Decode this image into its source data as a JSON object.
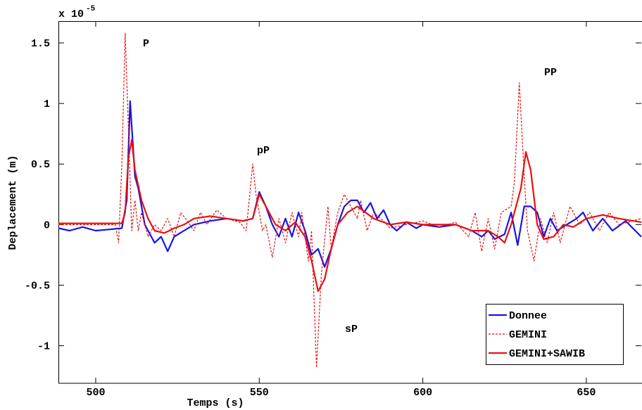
{
  "chart_data": {
    "type": "line",
    "xlabel": "Temps (s)",
    "ylabel": "Deplacement (m)",
    "y_multiplier": "x 10",
    "y_multiplier_exp": "-5",
    "annotations": [
      "P",
      "pP",
      "sP",
      "PP"
    ],
    "xlim": [
      488.6,
      666.8
    ],
    "ylim": [
      -1.31,
      1.68
    ],
    "xticks": [
      500,
      550,
      600,
      650
    ],
    "yticks": [
      -1,
      -0.5,
      0,
      0.5,
      1,
      1.5
    ],
    "legend": "lower right",
    "series": [
      {
        "name": "Donnee",
        "color": "#1515e6",
        "style": "solid",
        "x": [
          488.6,
          492,
          496,
          500,
          504,
          508,
          509.5,
          510.5,
          512,
          513,
          515,
          518,
          520,
          522,
          524,
          527,
          530,
          535,
          540,
          545,
          548,
          550,
          552,
          554,
          556,
          558,
          560,
          562,
          564,
          566,
          568,
          570,
          572,
          574,
          576,
          578,
          580,
          582,
          584,
          586,
          588,
          590,
          592,
          595,
          598,
          600,
          605,
          610,
          615,
          618,
          620,
          622,
          625,
          627,
          629,
          631,
          633,
          635,
          637,
          639,
          641,
          644,
          647,
          649,
          652,
          655,
          658,
          662,
          666.8
        ],
        "values": [
          -0.03,
          -0.05,
          -0.02,
          -0.05,
          -0.04,
          -0.03,
          0.2,
          1.02,
          0.4,
          0.3,
          0,
          -0.15,
          -0.1,
          -0.22,
          -0.1,
          -0.05,
          0,
          0.03,
          0.05,
          0.03,
          0.05,
          0.27,
          0.15,
          0,
          -0.1,
          0.05,
          -0.1,
          0.1,
          -0.05,
          -0.25,
          -0.2,
          -0.35,
          -0.2,
          0,
          0.15,
          0.2,
          0.2,
          0.1,
          0.18,
          0.05,
          0.12,
          0,
          -0.05,
          0.02,
          -0.03,
          0,
          -0.02,
          0,
          -0.05,
          -0.1,
          -0.05,
          -0.12,
          -0.08,
          0.1,
          -0.17,
          0.15,
          0.15,
          0.1,
          -0.1,
          0.05,
          -0.05,
          0,
          0.05,
          0.1,
          -0.05,
          0.05,
          -0.05,
          0.03,
          -0.1
        ]
      },
      {
        "name": "GEMINI",
        "color": "#e81010",
        "style": "dashed",
        "x": [
          488.6,
          500,
          506,
          507,
          508,
          509,
          510,
          511,
          512,
          513,
          514,
          516,
          518,
          520,
          522,
          524,
          526,
          528,
          530,
          532,
          534,
          537,
          540,
          544,
          546,
          548,
          549,
          551,
          552,
          554,
          556,
          558,
          560,
          562,
          563,
          565,
          566,
          567.5,
          569,
          571,
          572,
          574,
          576,
          578,
          580,
          581,
          583,
          585,
          588,
          590,
          595,
          600,
          605,
          610,
          614,
          616,
          618,
          620,
          622,
          624,
          627,
          628,
          629.5,
          631,
          632,
          634,
          636,
          638,
          640,
          642,
          645,
          648,
          651,
          654,
          657,
          660,
          666.8
        ],
        "values": [
          0,
          0,
          0,
          -0.15,
          0.5,
          1.58,
          0.8,
          -0.05,
          0.2,
          -0.05,
          0.1,
          -0.1,
          0,
          -0.05,
          0.05,
          -0.1,
          0.1,
          0.03,
          -0.05,
          0.1,
          0,
          0.12,
          0.05,
          0.02,
          -0.05,
          0.5,
          0.25,
          -0.05,
          0,
          -0.27,
          0.05,
          -0.15,
          0.1,
          -0.1,
          0.1,
          -0.3,
          -0.05,
          -1.18,
          -0.4,
          0.15,
          -0.2,
          0.1,
          0.25,
          0.15,
          0.05,
          0.2,
          -0.05,
          0.1,
          0.03,
          -0.03,
          0,
          0.03,
          -0.02,
          0.02,
          -0.1,
          0.1,
          -0.22,
          0.05,
          -0.2,
          0.1,
          0.15,
          0.35,
          1.17,
          0.4,
          -0.05,
          -0.3,
          0.05,
          -0.15,
          0.1,
          -0.15,
          0.15,
          0,
          0.1,
          -0.05,
          0.1,
          0,
          0.05
        ]
      },
      {
        "name": "GEMINI+SAWIB",
        "color": "#e81010",
        "style": "solid",
        "x": [
          488.6,
          500,
          508,
          509,
          510,
          511,
          512,
          514,
          516,
          518,
          521,
          524,
          527,
          530,
          535,
          540,
          545,
          548,
          550,
          552,
          555,
          558,
          561,
          564,
          566,
          568,
          570,
          572,
          574,
          577,
          580,
          585,
          590,
          595,
          600,
          605,
          610,
          615,
          620,
          623,
          625,
          627,
          630,
          631.5,
          633,
          635,
          637,
          640,
          643,
          646,
          650,
          655,
          660,
          666.8
        ],
        "values": [
          0.01,
          0.01,
          0.01,
          0.1,
          0.55,
          0.7,
          0.45,
          0.2,
          0.05,
          -0.05,
          -0.07,
          -0.03,
          0,
          0.05,
          0.07,
          0.05,
          0.03,
          0.05,
          0.25,
          0.15,
          0,
          -0.05,
          0.02,
          -0.1,
          -0.3,
          -0.55,
          -0.45,
          -0.2,
          0,
          0.1,
          0.15,
          0.05,
          0,
          0.02,
          0,
          0,
          0,
          -0.05,
          -0.05,
          -0.1,
          -0.15,
          0,
          0.3,
          0.6,
          0.45,
          0,
          -0.12,
          -0.1,
          0,
          -0.02,
          0.05,
          0.08,
          0.05,
          0.02
        ]
      }
    ]
  }
}
